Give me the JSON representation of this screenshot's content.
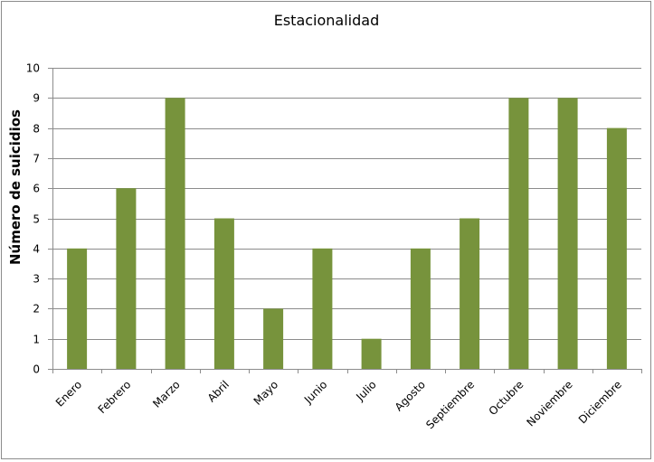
{
  "chart_data": {
    "type": "bar",
    "title": "Estacionalidad",
    "xlabel": "",
    "ylabel": "Número de suicidios",
    "categories": [
      "Enero",
      "Febrero",
      "Marzo",
      "Abril",
      "Mayo",
      "Junio",
      "Julio",
      "Agosto",
      "Septiembre",
      "Octubre",
      "Noviembre",
      "Diciembre"
    ],
    "values": [
      4,
      6,
      9,
      5,
      2,
      4,
      1,
      4,
      5,
      9,
      9,
      8
    ],
    "ylim": [
      0,
      10
    ],
    "yticks": [
      "0",
      "1",
      "2",
      "3",
      "4",
      "5",
      "6",
      "7",
      "8",
      "9",
      "10"
    ],
    "grid": true,
    "bar_color": "#77933c",
    "grid_color": "#8c8c8c"
  }
}
